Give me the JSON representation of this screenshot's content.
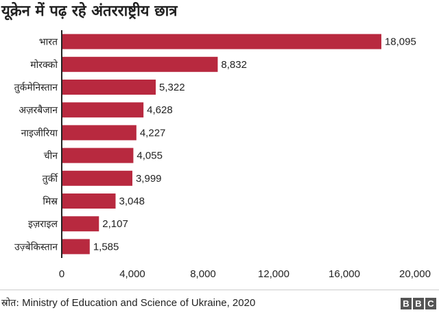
{
  "title": "यूक्रेन में पढ़ रहे अंतरराष्ट्रीय छात्र",
  "source": {
    "prefix": "स्रोत:",
    "text": "Ministry of Education and Science of Ukraine, 2020"
  },
  "logo": {
    "letters": [
      "B",
      "B",
      "C"
    ],
    "color": "#555555"
  },
  "colors": {
    "bar": "#b8293f",
    "axis": "#222222",
    "text": "#222222",
    "background": "#ffffff"
  },
  "chart_data": {
    "type": "bar",
    "orientation": "horizontal",
    "title": "यूक्रेन में पढ़ रहे अंतरराष्ट्रीय छात्र",
    "categories": [
      "भारत",
      "मोरक्को",
      "तुर्कमेनिस्तान",
      "अज़रबैजान",
      "नाइजीरिया",
      "चीन",
      "तुर्की",
      "मिस्र",
      "इज़राइल",
      "उज़्बेकिस्तान"
    ],
    "values": [
      18095,
      8832,
      5322,
      4628,
      4227,
      4055,
      3999,
      3048,
      2107,
      1585
    ],
    "value_labels": [
      "18,095",
      "8,832",
      "5,322",
      "4,628",
      "4,227",
      "4,055",
      "3,999",
      "3,048",
      "2,107",
      "1,585"
    ],
    "xlim": [
      0,
      20000
    ],
    "xticks": [
      0,
      4000,
      8000,
      12000,
      16000,
      20000
    ],
    "xtick_labels": [
      "0",
      "4,000",
      "8,000",
      "12,000",
      "16,000",
      "20,000"
    ],
    "xlabel": "",
    "ylabel": "",
    "grid": false,
    "legend": "none"
  }
}
